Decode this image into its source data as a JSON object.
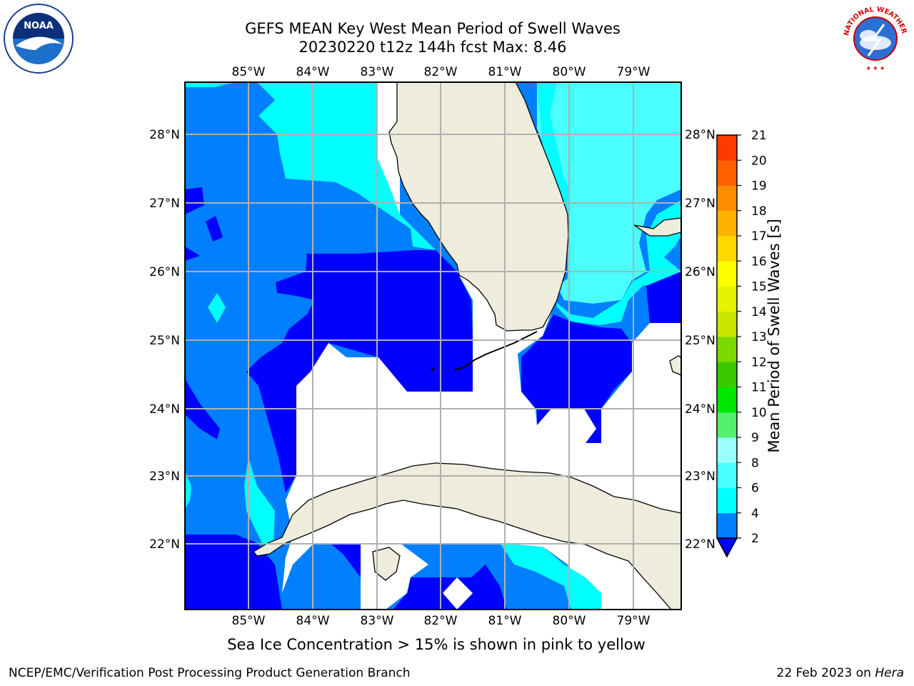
{
  "header": {
    "title_line1": "GEFS MEAN Key West Mean Period of Swell Waves",
    "title_line2": "20230220 t12z 144h fcst   Max: 8.46"
  },
  "logos": {
    "left": "NOAA",
    "right": "NATIONAL WEATHER SERVICE"
  },
  "map": {
    "lon_labels": [
      "85°W",
      "84°W",
      "83°W",
      "82°W",
      "81°W",
      "80°W",
      "79°W"
    ],
    "lat_labels": [
      "28°N",
      "27°N",
      "26°N",
      "25°N",
      "24°N",
      "23°N",
      "22°N"
    ],
    "colors": {
      "land": "#eeecdc",
      "level_2_4": "#0000ff",
      "level_4_6": "#007fff",
      "level_6_8": "#00ffff",
      "level_8_9": "#49ffff",
      "no_data": "#ffffff",
      "grid": "#b0b0b0"
    }
  },
  "colorbar": {
    "label": "Mean Period of Swell Waves [s]",
    "ticks": [
      "2",
      "4",
      "6",
      "8",
      "9",
      "10",
      "11",
      "12",
      "13",
      "14",
      "15",
      "16",
      "17",
      "18",
      "19",
      "20",
      "21"
    ],
    "colors": [
      "#0000ff",
      "#007fff",
      "#00ffff",
      "#49ffff",
      "#99ffff",
      "#54ef6d",
      "#00e600",
      "#3ac800",
      "#7bd900",
      "#c8e600",
      "#e6f200",
      "#ffff00",
      "#ffd800",
      "#ffb200",
      "#ff8c00",
      "#ff6100",
      "#ff3a00",
      "#ff0000"
    ]
  },
  "note": "Sea Ice Concentration > 15% is shown in pink to yellow",
  "footer": {
    "left": "NCEP/EMC/Verification Post Processing Product Generation Branch",
    "right_date": "22 Feb 2023 on ",
    "right_host": "Hera"
  }
}
